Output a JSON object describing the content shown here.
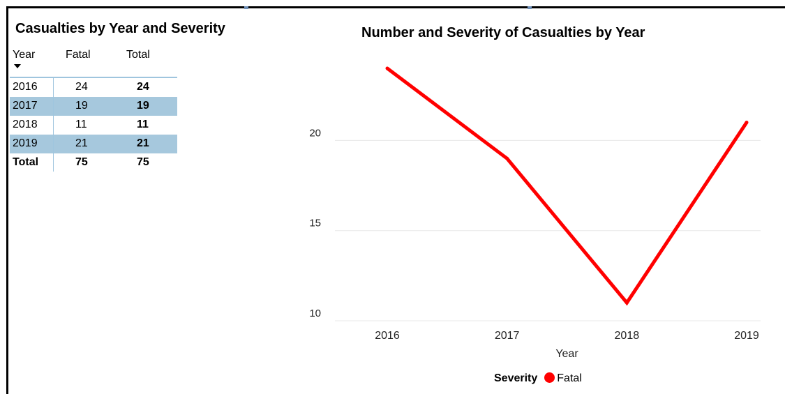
{
  "table": {
    "title": "Casualties by Year and Severity",
    "headers": {
      "year": "Year",
      "fatal": "Fatal",
      "total": "Total"
    },
    "rows": [
      {
        "year": "2016",
        "fatal": "24",
        "total": "24"
      },
      {
        "year": "2017",
        "fatal": "19",
        "total": "19"
      },
      {
        "year": "2018",
        "fatal": "11",
        "total": "11"
      },
      {
        "year": "2019",
        "fatal": "21",
        "total": "21"
      }
    ],
    "total_row": {
      "year": "Total",
      "fatal": "75",
      "total": "75"
    },
    "band_color": "#a6c8dd"
  },
  "chart_data": {
    "type": "line",
    "title": "Number and Severity of Casualties by Year",
    "xlabel": "Year",
    "ylabel": "",
    "categories": [
      "2016",
      "2017",
      "2018",
      "2019"
    ],
    "series": [
      {
        "name": "Fatal",
        "values": [
          24,
          19,
          11,
          21
        ],
        "color": "#ff0000"
      }
    ],
    "ylim": [
      10,
      24
    ],
    "yticks": [
      10,
      15,
      20
    ],
    "grid": true,
    "legend": {
      "title": "Severity",
      "placement": "bottom-center"
    }
  },
  "colors": {
    "series_red": "#ff0000",
    "gridline": "#e8e8e8",
    "table_band": "#a6c8dd"
  }
}
